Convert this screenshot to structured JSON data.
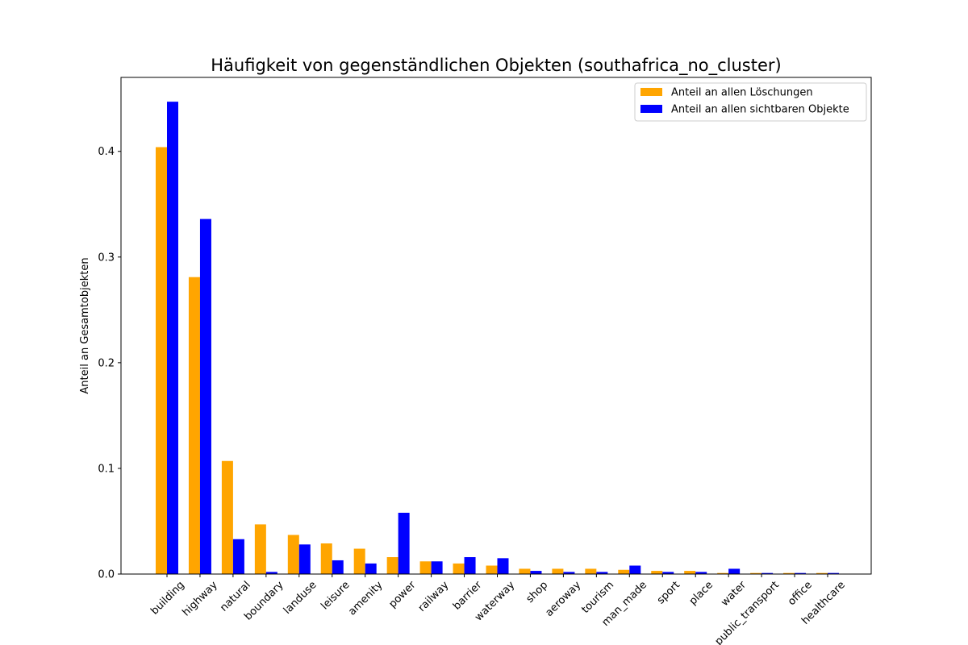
{
  "chart_data": {
    "type": "bar",
    "title": "Häufigkeit von gegenständlichen Objekten (southafrica_no_cluster)",
    "xlabel": "",
    "ylabel": "Anteil an Gesamtobjekten",
    "ylim": [
      0,
      0.47
    ],
    "yticks": [
      0.0,
      0.1,
      0.2,
      0.3,
      0.4
    ],
    "ytick_labels": [
      "0.0",
      "0.1",
      "0.2",
      "0.3",
      "0.4"
    ],
    "grid": false,
    "legend_position": "top-right",
    "categories": [
      "building",
      "highway",
      "natural",
      "boundary",
      "landuse",
      "leisure",
      "amenity",
      "power",
      "railway",
      "barrier",
      "waterway",
      "shop",
      "aeroway",
      "tourism",
      "man_made",
      "sport",
      "place",
      "water",
      "public_transport",
      "office",
      "healthcare"
    ],
    "series": [
      {
        "name": "Anteil an allen Löschungen",
        "color": "#ffa500",
        "values": [
          0.404,
          0.281,
          0.107,
          0.047,
          0.037,
          0.029,
          0.024,
          0.016,
          0.012,
          0.01,
          0.008,
          0.005,
          0.005,
          0.005,
          0.004,
          0.003,
          0.003,
          0.001,
          0.001,
          0.001,
          0.001
        ]
      },
      {
        "name": "Anteil an allen sichtbaren Objekte",
        "color": "#0000ff",
        "values": [
          0.447,
          0.336,
          0.033,
          0.002,
          0.028,
          0.013,
          0.01,
          0.058,
          0.012,
          0.016,
          0.015,
          0.003,
          0.002,
          0.002,
          0.008,
          0.002,
          0.002,
          0.005,
          0.001,
          0.001,
          0.001
        ]
      }
    ]
  }
}
